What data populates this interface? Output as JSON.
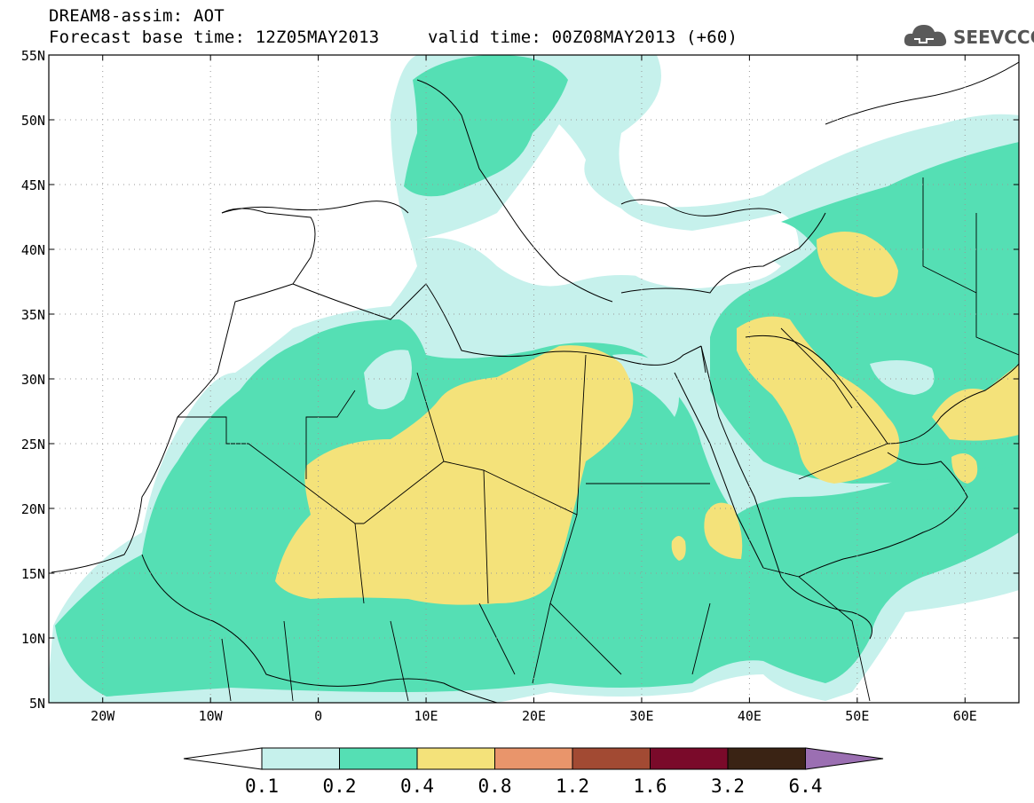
{
  "title": {
    "line1": "DREAM8-assim: AOT",
    "line2a": "Forecast base time: 12Z05MAY2013",
    "line2b": "valid time: 00Z08MAY2013 (+60)"
  },
  "logo": {
    "text": "SEEVCCC",
    "icon": "cloud-icon"
  },
  "map": {
    "lat_labels": [
      "55N",
      "50N",
      "45N",
      "40N",
      "35N",
      "30N",
      "25N",
      "20N",
      "15N",
      "10N",
      "5N"
    ],
    "lon_labels": [
      "20W",
      "10W",
      "0",
      "10E",
      "20E",
      "30E",
      "40E",
      "50E",
      "60E"
    ],
    "lat_range": [
      5,
      55
    ],
    "lon_range": [
      -25,
      65
    ],
    "grid": "dotted"
  },
  "colorbar": {
    "levels": [
      "0.1",
      "0.2",
      "0.4",
      "0.8",
      "1.2",
      "1.6",
      "3.2",
      "6.4"
    ],
    "colors": [
      "#ffffff",
      "#c6f1ec",
      "#55dfb4",
      "#f4e27a",
      "#e9956b",
      "#a24a33",
      "#7a0a2a",
      "#3a2314",
      "#9b6fb2"
    ]
  },
  "field_colors": {
    "bin_0_1_0_2": "#c6f1ec",
    "bin_0_2_0_4": "#55dfb4",
    "bin_0_4_0_8": "#f4e27a"
  }
}
